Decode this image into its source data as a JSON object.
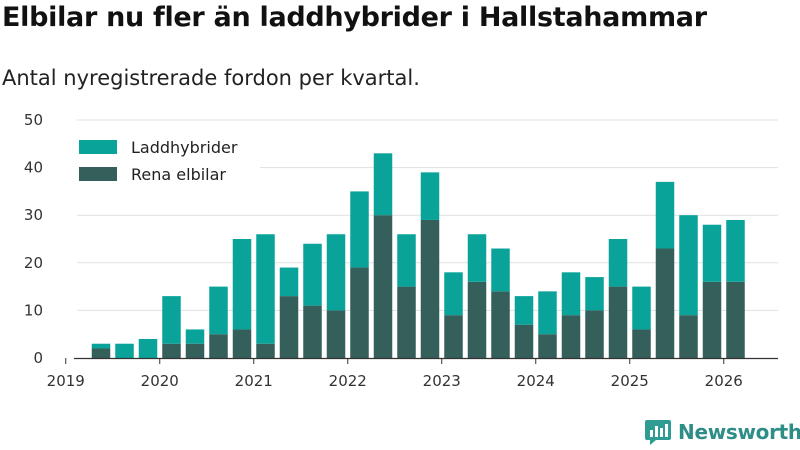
{
  "header": {
    "title": "Elbilar nu fler än laddhybrider i Hallstahammar",
    "subtitle": "Antal nyregistrerade fordon per kvartal."
  },
  "brand": {
    "name": "Newsworthy",
    "icon": "newsworthy-logo-icon",
    "color": "#2f9c94"
  },
  "chart_data": {
    "type": "bar",
    "stacked": true,
    "title": "Elbilar nu fler än laddhybrider i Hallstahammar",
    "subtitle": "Antal nyregistrerade fordon per kvartal.",
    "xlabel": "",
    "ylabel": "",
    "ylim": [
      0,
      50
    ],
    "yticks": [
      0,
      10,
      20,
      30,
      40,
      50
    ],
    "xticks": [
      "2019",
      "2020",
      "2021",
      "2022",
      "2023",
      "2024",
      "2025",
      "2026"
    ],
    "categories": [
      "2019 Q2",
      "2019 Q3",
      "2019 Q4",
      "2020 Q1",
      "2020 Q2",
      "2020 Q3",
      "2020 Q4",
      "2021 Q1",
      "2021 Q2",
      "2021 Q3",
      "2021 Q4",
      "2022 Q1",
      "2022 Q2",
      "2022 Q3",
      "2022 Q4",
      "2023 Q1",
      "2023 Q2",
      "2023 Q3",
      "2023 Q4",
      "2024 Q1",
      "2024 Q2",
      "2024 Q3",
      "2024 Q4",
      "2025 Q1",
      "2025 Q2",
      "2025 Q3",
      "2025 Q4",
      "2026 Q1"
    ],
    "legend_position": "top-left",
    "grid": true,
    "series": [
      {
        "name": "Rena elbilar",
        "color": "#345f5b",
        "values": [
          2,
          0,
          0,
          3,
          3,
          5,
          6,
          3,
          13,
          11,
          10,
          19,
          30,
          15,
          29,
          9,
          16,
          14,
          7,
          5,
          9,
          10,
          15,
          6,
          23,
          9,
          16,
          16
        ]
      },
      {
        "name": "Laddhybrider",
        "color": "#0aa39a",
        "values": [
          1,
          3,
          4,
          10,
          3,
          10,
          19,
          23,
          6,
          13,
          16,
          16,
          13,
          11,
          10,
          9,
          10,
          9,
          6,
          9,
          9,
          7,
          10,
          9,
          14,
          21,
          12,
          13
        ]
      }
    ]
  }
}
